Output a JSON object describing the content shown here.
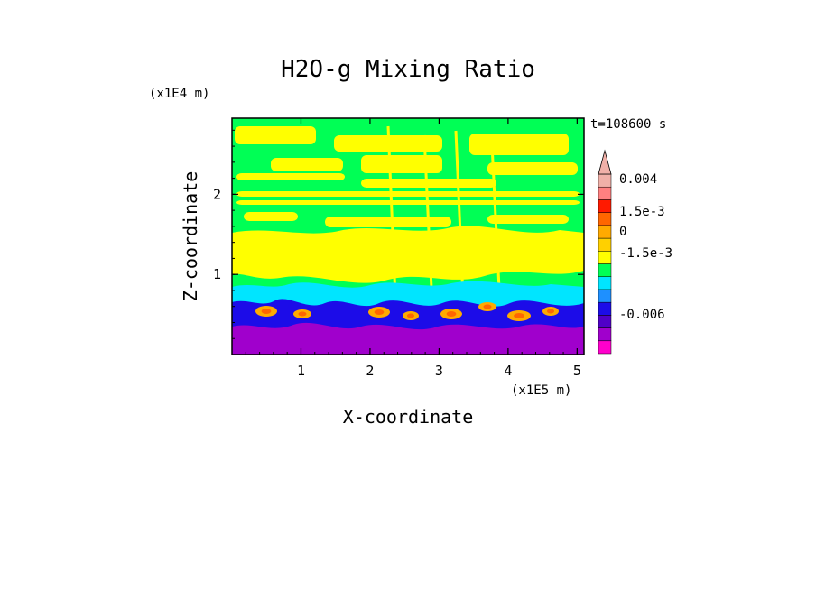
{
  "chart_data": {
    "type": "heatmap",
    "title": "H2O-g Mixing Ratio",
    "time_label": "t=108600 s",
    "xlabel": "X-coordinate",
    "ylabel": "Z-coordinate",
    "x_unit": "(x1E5 m)",
    "y_unit": "(x1E4 m)",
    "x_ticks": [
      "1",
      "2",
      "3",
      "4",
      "5"
    ],
    "y_ticks": [
      "1",
      "2"
    ],
    "xlim": [
      0.0,
      5.1
    ],
    "ylim": [
      0.0,
      2.95
    ],
    "colorbar": {
      "bands": [
        "#ff00cc",
        "#a000cc",
        "#5000c8",
        "#1c0ce8",
        "#1e90ff",
        "#00e5ff",
        "#00ff55",
        "#ffff00",
        "#ffd000",
        "#ffaa00",
        "#ff6600",
        "#ff1a00",
        "#ff8080",
        "#f0b0a8"
      ],
      "labels": [
        "0.004",
        "1.5e-3",
        "0",
        "-1.5e-3",
        "-0.006"
      ]
    },
    "palette": {
      "background": "#00ff55",
      "moist": "#ffff00",
      "warm": "#ffaa00",
      "hot": "#ff6600",
      "cool": "#00e5ff",
      "cold": "#1c0ce8",
      "deep": "#a000cc"
    }
  }
}
